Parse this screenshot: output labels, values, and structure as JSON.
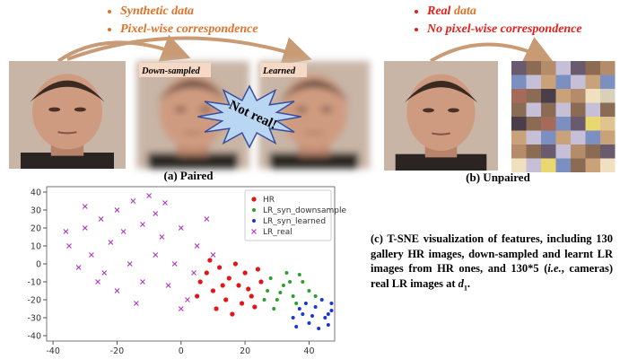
{
  "top": {
    "left_bullets": [
      "Synthetic data",
      "Pixel-wise correspondence"
    ],
    "right_real": "Real",
    "right_data": "data",
    "right_second": "No pixel-wise correspondence"
  },
  "images": {
    "downsampled_tag": "Down-sampled",
    "learned_tag": "Learned",
    "burst": "Not real!",
    "paired_caption": "(a) Paired",
    "unpaired_caption": "(b) Unpaired"
  },
  "caption": {
    "text1": "(c) T-SNE visualization of features, including 130 gallery HR images, down-sampled and learnt LR images from HR ones, and 130*5 (",
    "ie": "i.e.",
    "text2": ", cameras) real LR images at ",
    "d": "d",
    "sub": "1",
    "end": "."
  },
  "chart_data": {
    "type": "scatter",
    "xlim": [
      -42,
      48
    ],
    "ylim": [
      -43,
      43
    ],
    "xticks": [
      -40,
      -20,
      0,
      20,
      40
    ],
    "yticks": [
      -40,
      -30,
      -20,
      -10,
      0,
      10,
      20,
      30,
      40
    ],
    "legend": "upper right",
    "series": [
      {
        "name": "HR",
        "color": "#e0161b",
        "marker": "o",
        "x": [
          8,
          12,
          15,
          18,
          10,
          20,
          22,
          14,
          6,
          25,
          17,
          11,
          19,
          24,
          9,
          13,
          21,
          16,
          5,
          23
        ],
        "values": [
          -5,
          -2,
          -8,
          -12,
          -15,
          -5,
          -18,
          -20,
          -10,
          -10,
          0,
          -25,
          -22,
          -3,
          2,
          -12,
          -14,
          -28,
          -18,
          -24
        ]
      },
      {
        "name": "LR_syn_downsample",
        "color": "#2ca02c",
        "marker": ".",
        "x": [
          28,
          32,
          35,
          30,
          27,
          38,
          33,
          36,
          29,
          40,
          31,
          34,
          26,
          37,
          42
        ],
        "values": [
          -8,
          -12,
          -18,
          -20,
          -15,
          -10,
          -5,
          -22,
          -25,
          -15,
          -16,
          -10,
          -20,
          -6,
          -18
        ]
      },
      {
        "name": "LR_syn_learned",
        "color": "#1a35d0",
        "marker": ".",
        "x": [
          38,
          42,
          45,
          40,
          47,
          36,
          44,
          46,
          39,
          43,
          46,
          35,
          41,
          47,
          37
        ],
        "values": [
          -28,
          -24,
          -30,
          -33,
          -26,
          -35,
          -20,
          -34,
          -22,
          -36,
          -28,
          -30,
          -29,
          -22,
          -25
        ]
      },
      {
        "name": "LR_real",
        "color": "#b03cc0",
        "marker": "x",
        "x": [
          -35,
          -30,
          -25,
          -20,
          -15,
          -10,
          -5,
          -28,
          -22,
          -18,
          -12,
          -6,
          0,
          5,
          -32,
          -24,
          -16,
          -8,
          -2,
          4,
          -20,
          -12,
          -4,
          2,
          -26,
          -14,
          8,
          -36,
          -8,
          10,
          -30,
          0
        ],
        "values": [
          10,
          20,
          25,
          30,
          35,
          38,
          34,
          5,
          12,
          18,
          22,
          15,
          20,
          10,
          -2,
          -5,
          0,
          5,
          0,
          -5,
          -15,
          -10,
          -12,
          -20,
          -10,
          -22,
          25,
          18,
          28,
          5,
          32,
          -25
        ]
      }
    ]
  }
}
